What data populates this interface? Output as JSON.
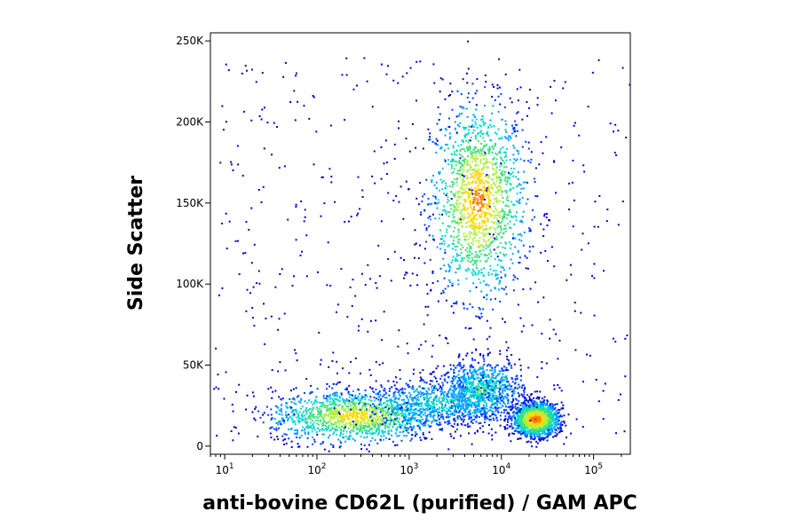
{
  "chart_data": {
    "type": "scatter",
    "subtype": "flow-cytometry-density-dot-plot",
    "xlabel": "anti-bovine CD62L (purified) / GAM APC",
    "ylabel": "Side Scatter",
    "x_scale": "log",
    "y_scale": "linear",
    "xlim": [
      7,
      250000
    ],
    "ylim": [
      -5000,
      255000
    ],
    "x_ticks": [
      {
        "value": 10,
        "base": "10",
        "exp": "1"
      },
      {
        "value": 100,
        "base": "10",
        "exp": "2"
      },
      {
        "value": 1000,
        "base": "10",
        "exp": "3"
      },
      {
        "value": 10000,
        "base": "10",
        "exp": "4"
      },
      {
        "value": 100000,
        "base": "10",
        "exp": "5"
      }
    ],
    "y_ticks": [
      {
        "value": 0,
        "label": "0"
      },
      {
        "value": 50000,
        "label": "50K"
      },
      {
        "value": 100000,
        "label": "100K"
      },
      {
        "value": 150000,
        "label": "150K"
      },
      {
        "value": 200000,
        "label": "200K"
      },
      {
        "value": 250000,
        "label": "250K"
      }
    ],
    "grid": false,
    "legend": "none",
    "density_colormap": [
      "#0000cc",
      "#0040ff",
      "#00a0ff",
      "#00d8d0",
      "#40e080",
      "#b0f040",
      "#ffd800",
      "#ff8000",
      "#ff2000"
    ],
    "populations": [
      {
        "x_center": 5500,
        "y_center": 152000,
        "x_spread_decades": 0.26,
        "y_spread": 30000,
        "relative_density": 0.9
      },
      {
        "x_center": 250,
        "y_center": 19000,
        "x_spread_decades": 0.45,
        "y_spread": 8000,
        "relative_density": 0.8
      },
      {
        "x_center": 23000,
        "y_center": 17000,
        "x_spread_decades": 0.12,
        "y_spread": 5000,
        "relative_density": 1.0
      },
      {
        "x_center": 6000,
        "y_center": 35000,
        "x_spread_decades": 0.22,
        "y_spread": 9000,
        "relative_density": 0.5
      },
      {
        "x_center": 2000,
        "y_center": 27000,
        "x_spread_decades": 0.4,
        "y_spread": 8000,
        "relative_density": 0.4
      }
    ]
  }
}
